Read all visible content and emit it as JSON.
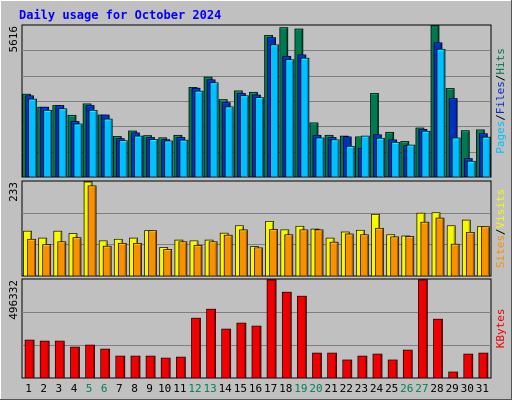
{
  "chart_data": [
    {
      "type": "bar",
      "title": "Daily usage for October 2024",
      "ymax_label": "5616",
      "ylim": [
        0,
        5616
      ],
      "x": [
        1,
        2,
        3,
        4,
        5,
        6,
        7,
        8,
        9,
        10,
        11,
        12,
        13,
        14,
        15,
        16,
        17,
        18,
        19,
        20,
        21,
        22,
        23,
        24,
        25,
        26,
        27,
        28,
        29,
        30,
        31
      ],
      "grid": true,
      "series": [
        {
          "name": "Hits",
          "color": "#007850",
          "values": [
            3060,
            2580,
            2640,
            2280,
            2700,
            2290,
            1500,
            1700,
            1530,
            1450,
            1540,
            3310,
            3690,
            2860,
            3180,
            3130,
            5230,
            5520,
            5470,
            2000,
            1540,
            1510,
            1480,
            3090,
            1650,
            1310,
            1810,
            5590,
            3270,
            1710,
            1740
          ]
        },
        {
          "name": "Files",
          "color": "#0030c0",
          "values": [
            3000,
            2580,
            2640,
            2050,
            2640,
            2290,
            1420,
            1630,
            1460,
            1380,
            1460,
            3280,
            3590,
            2750,
            3090,
            3030,
            5150,
            4460,
            4510,
            1540,
            1460,
            1480,
            1060,
            1560,
            1370,
            1160,
            1760,
            4960,
            2900,
            680,
            1600
          ]
        },
        {
          "name": "Pages",
          "color": "#00c0ff",
          "values": [
            2880,
            2460,
            2520,
            1960,
            2460,
            2140,
            1340,
            1510,
            1380,
            1330,
            1360,
            3170,
            3480,
            2590,
            3000,
            2930,
            4880,
            4330,
            4390,
            1440,
            1370,
            1130,
            1510,
            1430,
            1280,
            1180,
            1690,
            4720,
            1440,
            580,
            1470
          ]
        }
      ],
      "legend": [
        "Pages",
        "Files",
        "Hits"
      ]
    },
    {
      "type": "bar",
      "ymax_label": "233",
      "ylim": [
        0,
        233
      ],
      "grid": true,
      "series": [
        {
          "name": "Visits",
          "color": "#f8f800",
          "values": [
            110,
            93,
            110,
            104,
            231,
            86,
            90,
            93,
            111,
            70,
            88,
            86,
            88,
            105,
            123,
            72,
            134,
            113,
            122,
            115,
            93,
            108,
            112,
            151,
            101,
            98,
            154,
            155,
            123,
            137,
            121
          ]
        },
        {
          "name": "Sites",
          "color": "#f89000",
          "values": [
            90,
            77,
            84,
            94,
            221,
            73,
            80,
            80,
            111,
            65,
            84,
            75,
            84,
            100,
            113,
            69,
            114,
            101,
            113,
            113,
            83,
            103,
            101,
            117,
            96,
            97,
            132,
            142,
            78,
            107,
            121
          ]
        }
      ],
      "legend": [
        "Sites",
        "Visits"
      ]
    },
    {
      "type": "bar",
      "ymax_label": "496332",
      "ylim": [
        0,
        496332
      ],
      "grid": true,
      "series": [
        {
          "name": "KBytes",
          "color": "#f00000",
          "values": [
            190000,
            185000,
            185000,
            155000,
            165000,
            145000,
            110000,
            110000,
            110000,
            100000,
            105000,
            300000,
            345000,
            245000,
            275000,
            260000,
            510000,
            430000,
            410000,
            125000,
            125000,
            90000,
            110000,
            120000,
            90000,
            140000,
            515000,
            295000,
            30000,
            120000,
            125000
          ]
        }
      ],
      "legend": [
        "KBytes"
      ]
    }
  ],
  "x_axis": {
    "labels": [
      "1",
      "2",
      "3",
      "4",
      "5",
      "6",
      "7",
      "8",
      "9",
      "10",
      "11",
      "12",
      "13",
      "14",
      "15",
      "16",
      "17",
      "18",
      "19",
      "20",
      "21",
      "22",
      "23",
      "24",
      "25",
      "26",
      "27",
      "28",
      "29",
      "30",
      "31"
    ],
    "weekend": [
      5,
      6,
      12,
      13,
      19,
      20,
      26,
      27
    ],
    "weekday_color": "#000000",
    "weekend_color": "#00805c"
  },
  "colors": {
    "background": "#c0c0c0",
    "plot_bg": "#c0c0c0",
    "title": "#0000ff",
    "hits": "#007850",
    "files": "#0030c0",
    "pages": "#00c0ff",
    "visits": "#f8f800",
    "sites": "#f89000",
    "kbytes": "#f00000"
  },
  "separator": "/"
}
